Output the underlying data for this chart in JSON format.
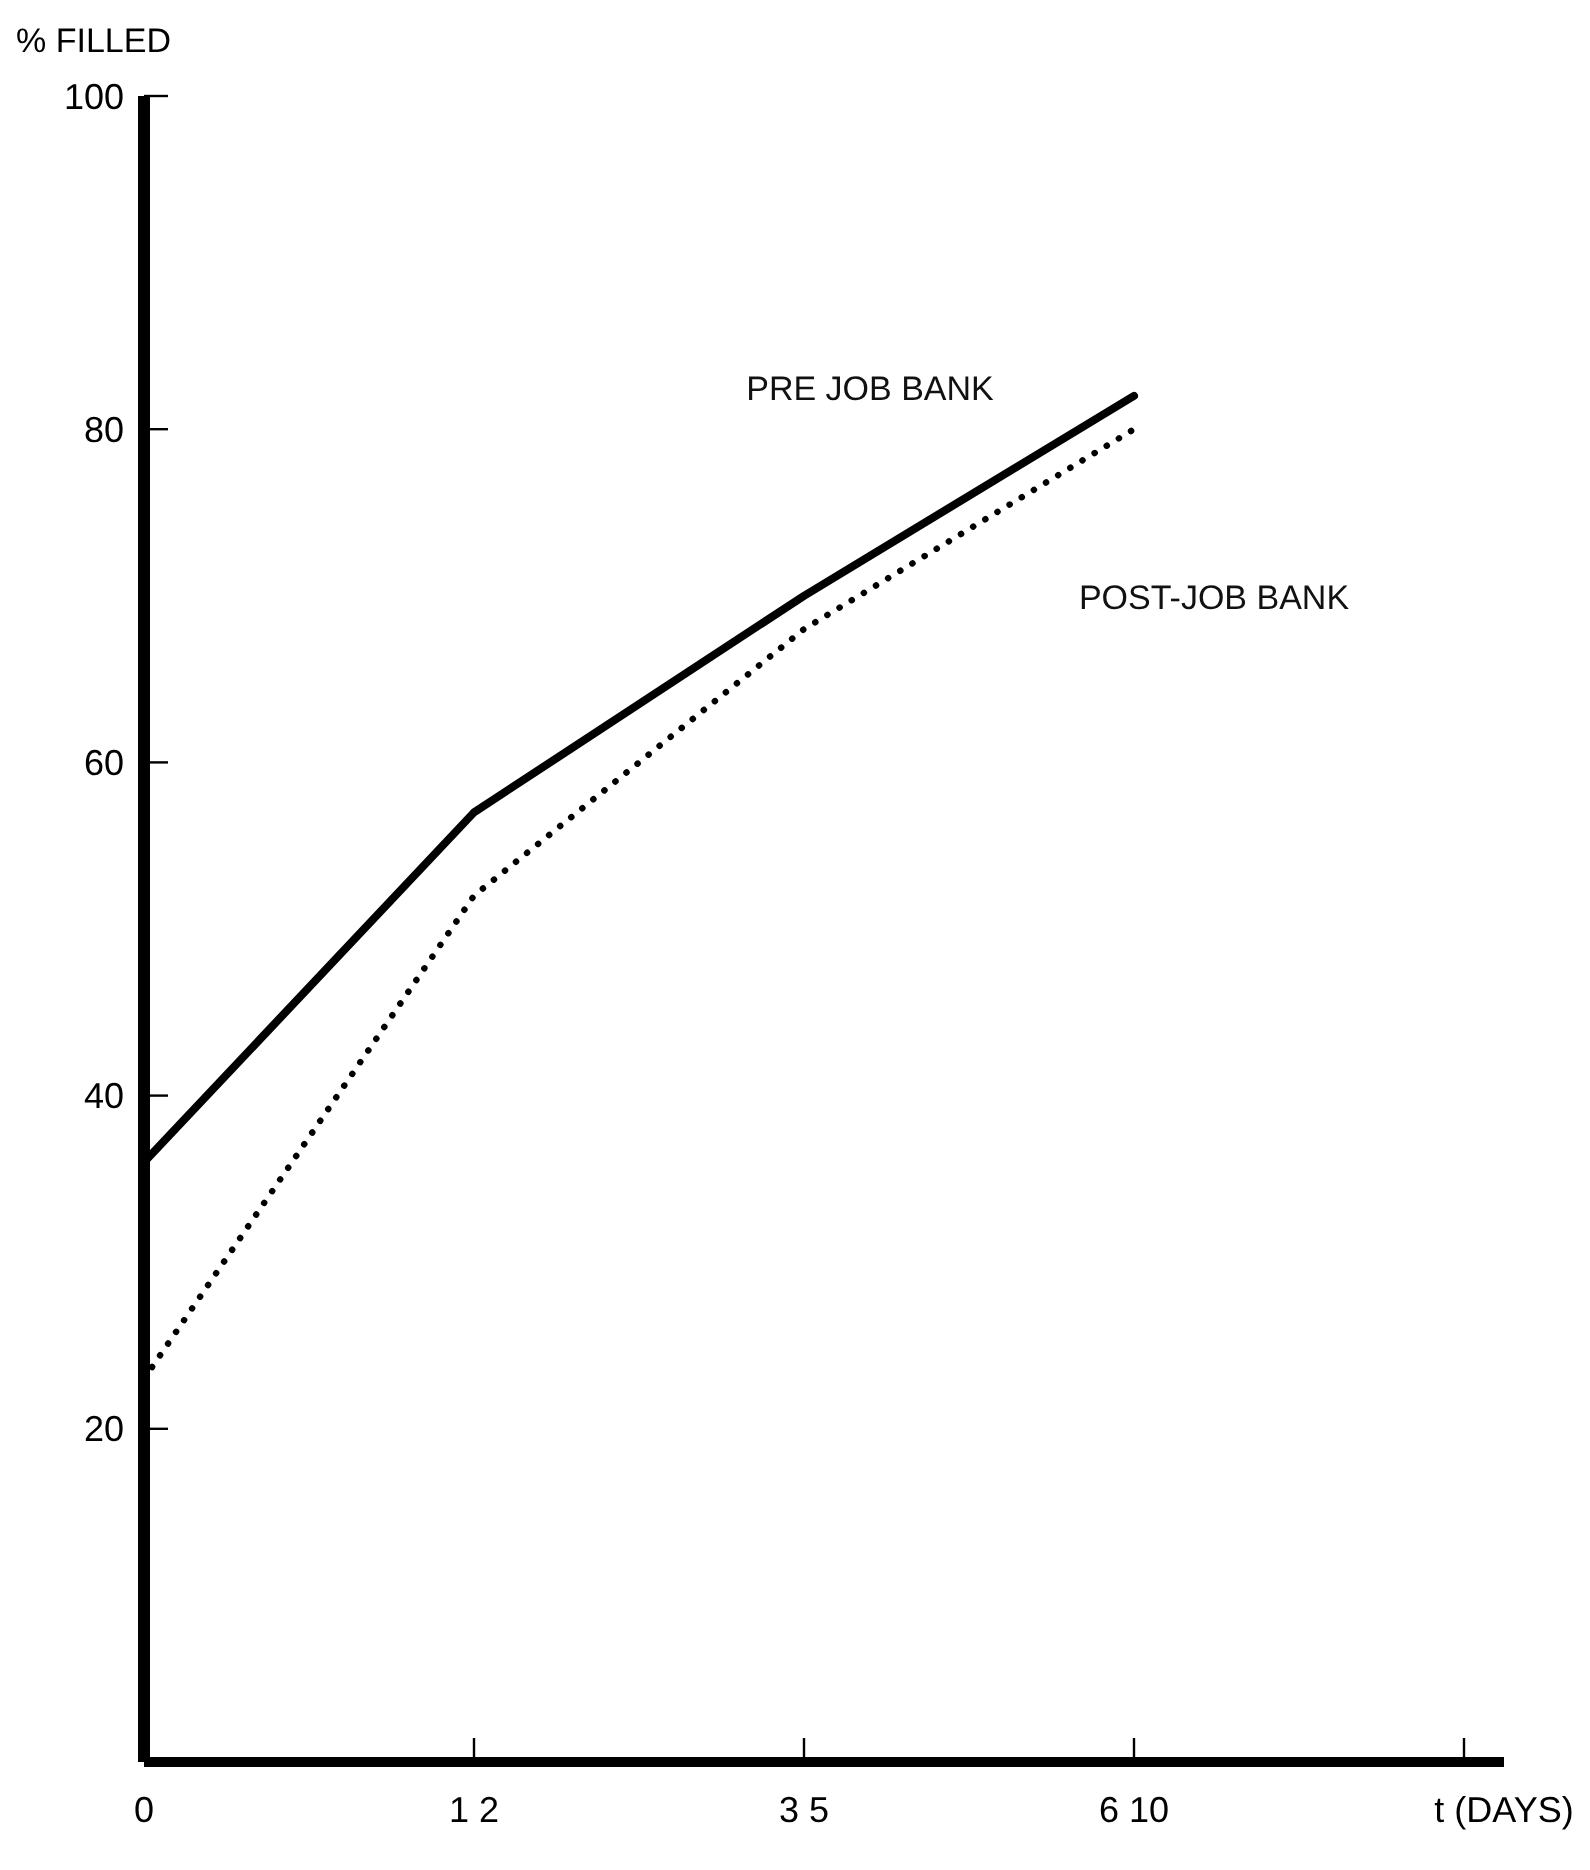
{
  "chart_data": {
    "type": "line",
    "ylabel": "% FILLED",
    "xlabel": "t (DAYS)",
    "categories": [
      "0",
      "1 2",
      "3 5",
      "6 10",
      null
    ],
    "series": [
      {
        "name": "PRE JOB BANK",
        "color": "#000000",
        "values": [
          36,
          57,
          70,
          82,
          null
        ],
        "line_style": "solid"
      },
      {
        "name": "POST-JOB BANK",
        "color": "#000000",
        "values": [
          23,
          52,
          68,
          80,
          null
        ],
        "line_style": "dotted"
      }
    ],
    "ylim": [
      0,
      100
    ],
    "yticks": [
      20,
      40,
      60,
      80,
      100
    ],
    "grid": false,
    "legend": false,
    "marker": "none"
  }
}
